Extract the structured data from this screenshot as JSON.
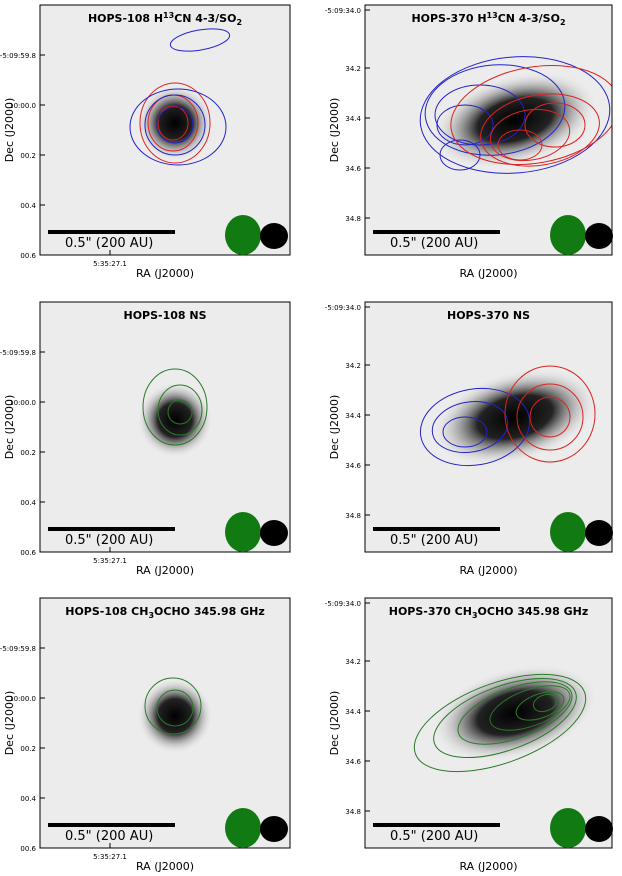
{
  "panels": [
    {
      "title": [
        "HOPS-108 H",
        "13",
        "CN 4-3/SO",
        "2"
      ],
      "ylabel": "Dec (J2000)",
      "xlabel": "RA (J2000)",
      "yticks": [
        "-5:09:59.8",
        "10:00.0",
        "00.2",
        "00.4",
        "00.6"
      ],
      "xticks": [
        "5:35:27.1"
      ],
      "scalebar": "0.5\" (200 AU)"
    },
    {
      "title": [
        "HOPS-370 H",
        "13",
        "CN 4-3/SO",
        "2"
      ],
      "ylabel": "Dec (J2000)",
      "xlabel": "RA (J2000)",
      "yticks": [
        "-5:09:34.0",
        "34.2",
        "34.4",
        "34.6",
        "34.8"
      ],
      "xticks": [],
      "scalebar": "0.5\" (200 AU)"
    },
    {
      "title": [
        "HOPS-108 NS"
      ],
      "ylabel": "Dec (J2000)",
      "xlabel": "RA (J2000)",
      "yticks": [
        "-5:09:59.8",
        "10:00.0",
        "00.2",
        "00.4",
        "00.6"
      ],
      "xticks": [
        "5:35:27.1"
      ],
      "scalebar": "0.5\" (200 AU)"
    },
    {
      "title": [
        "HOPS-370 NS"
      ],
      "ylabel": "Dec (J2000)",
      "xlabel": "RA (J2000)",
      "yticks": [
        "-5:09:34.0",
        "34.2",
        "34.4",
        "34.6",
        "34.8"
      ],
      "xticks": [],
      "scalebar": "0.5\" (200 AU)"
    },
    {
      "title": [
        "HOPS-108 CH",
        "3",
        "OCHO 345.98 GHz"
      ],
      "ylabel": "Dec (J2000)",
      "xlabel": "RA (J2000)",
      "yticks": [
        "-5:09:59.8",
        "10:00.0",
        "00.2",
        "00.4",
        "00.6"
      ],
      "xticks": [
        "5:35:27.1"
      ],
      "scalebar": "0.5\" (200 AU)"
    },
    {
      "title": [
        "HOPS-370 CH",
        "3",
        "OCHO 345.98 GHz"
      ],
      "ylabel": "Dec (J2000)",
      "xlabel": "RA (J2000)",
      "yticks": [
        "-5:09:34.0",
        "34.2",
        "34.4",
        "34.6",
        "34.8"
      ],
      "xticks": [],
      "scalebar": "0.5\" (200 AU)"
    }
  ]
}
